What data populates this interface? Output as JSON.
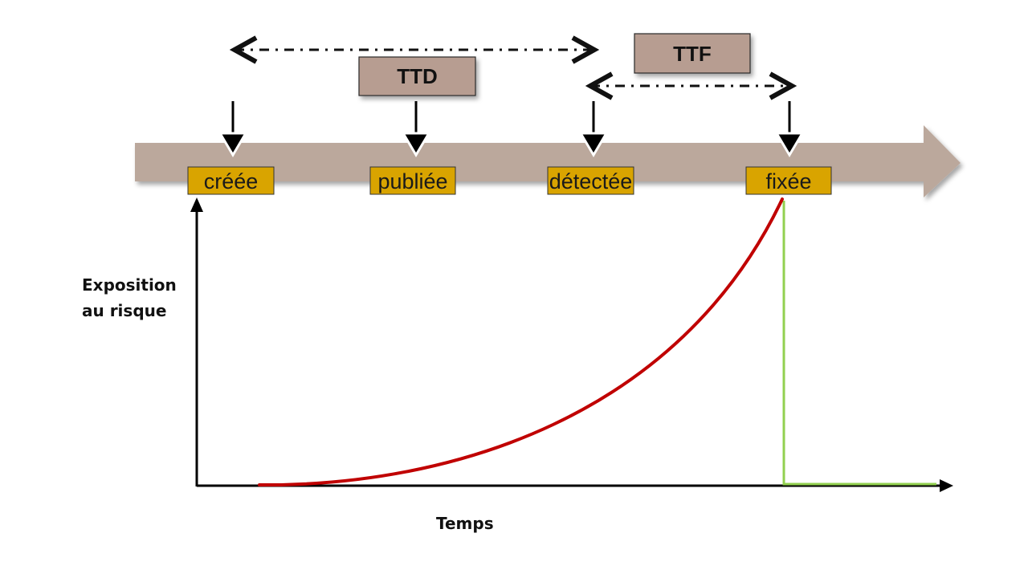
{
  "diagram": {
    "interval_boxes": {
      "ttd": "TTD",
      "ttf": "TTF"
    },
    "stages": {
      "creee": "créée",
      "publiee": "publiée",
      "detectee": "détectée",
      "fixee": "fixée"
    },
    "axes": {
      "y_label_line1": "Exposition",
      "y_label_line2": "au risque",
      "x_label": "Temps"
    },
    "colors": {
      "timeline_arrow": "#bba89c",
      "interval_box": "#b79d91",
      "stage_box": "#d9a400",
      "exposure_curve": "#c00000",
      "fixed_line": "#92d050"
    }
  }
}
